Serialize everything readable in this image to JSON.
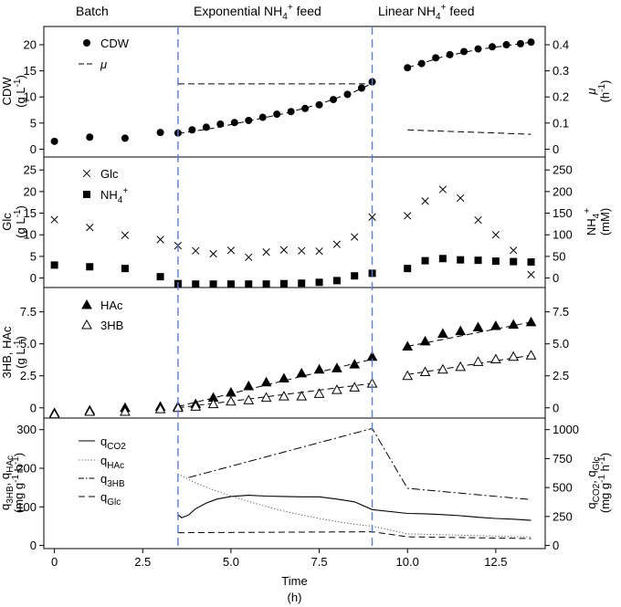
{
  "phases": {
    "batch": "Batch",
    "exponential": "Exponential NH₄⁺ feed",
    "linear": "Linear NH₄⁺ feed",
    "boundaries_h": [
      3.5,
      9.0
    ]
  },
  "chart_data": [
    {
      "type": "scatter",
      "panel": "A",
      "xlim": [
        -0.3,
        13.9
      ],
      "ylim_left": [
        -1.5,
        23.5
      ],
      "left_ticks": [
        "0",
        "5",
        "10",
        "15",
        "20"
      ],
      "ylim_right": [
        -0.03,
        0.47
      ],
      "right_ticks": [
        "0",
        "0.1",
        "0.2",
        "0.3",
        "0.4"
      ],
      "ylabel_left": "CDW",
      "ylabel_left_unit": "(g L⁻¹)",
      "ylabel_right": "μ",
      "ylabel_right_unit": "(h⁻¹)",
      "legend": [
        "CDW",
        "μ"
      ],
      "series": [
        {
          "name": "CDW",
          "axis": "left",
          "marker": "filled-circle",
          "x": [
            0,
            1,
            2,
            3,
            3.5,
            3.9,
            4.3,
            4.7,
            5.1,
            5.5,
            5.9,
            6.3,
            6.7,
            7.1,
            7.5,
            7.9,
            8.3,
            8.7,
            9.0,
            10.0,
            10.4,
            10.8,
            11.2,
            11.6,
            12.0,
            12.4,
            12.8,
            13.2,
            13.5
          ],
          "y": [
            1.5,
            2.3,
            2.1,
            3.2,
            3.1,
            3.7,
            4.2,
            4.8,
            5.1,
            5.5,
            6.1,
            6.7,
            7.2,
            7.8,
            8.5,
            9.5,
            10.5,
            11.7,
            12.9,
            15.6,
            16.4,
            17.5,
            18.1,
            18.7,
            19.2,
            19.6,
            20.0,
            20.2,
            20.5
          ]
        },
        {
          "name": "CDW fit",
          "axis": "left",
          "style": "dashed",
          "x": [
            3.5,
            4.5,
            5.5,
            6.5,
            7.5,
            8.5,
            9.0
          ],
          "y": [
            3.0,
            4.0,
            5.4,
            6.8,
            8.6,
            11.0,
            12.6
          ]
        },
        {
          "name": "CDW fit linear",
          "axis": "left",
          "style": "dashed",
          "x": [
            10.0,
            11.0,
            12.0,
            13.0,
            13.5
          ],
          "y": [
            15.6,
            17.7,
            19.1,
            20.0,
            20.5
          ]
        },
        {
          "name": "μ",
          "axis": "right",
          "style": "dashed",
          "x": [
            3.5,
            9.0
          ],
          "y": [
            0.25,
            0.25
          ]
        },
        {
          "name": "μ linear",
          "axis": "right",
          "style": "dashed",
          "x": [
            10.0,
            13.5
          ],
          "y": [
            0.074,
            0.057
          ]
        }
      ]
    },
    {
      "type": "scatter",
      "panel": "B",
      "xlim": [
        -0.3,
        13.9
      ],
      "ylim_left": [
        -2.2,
        28
      ],
      "left_ticks": [
        "0",
        "5",
        "10",
        "15",
        "20",
        "25"
      ],
      "ylim_right": [
        -22,
        280
      ],
      "right_ticks": [
        "0",
        "50",
        "100",
        "150",
        "200",
        "250"
      ],
      "ylabel_left": "Glc",
      "ylabel_left_unit": "(g L⁻¹)",
      "ylabel_right": "NH₄⁺",
      "ylabel_right_unit": "(mM)",
      "legend": [
        "Glc",
        "NH₄⁺"
      ],
      "series": [
        {
          "name": "Glc",
          "axis": "left",
          "marker": "x",
          "x": [
            0,
            1,
            2,
            3,
            3.5,
            4.0,
            4.5,
            5.0,
            5.5,
            6.0,
            6.5,
            7.0,
            7.5,
            8.0,
            8.5,
            9.0,
            10.0,
            10.5,
            11.0,
            11.5,
            12.0,
            12.5,
            13.0,
            13.5
          ],
          "y": [
            13.5,
            11.7,
            9.9,
            8.9,
            7.5,
            6.3,
            5.6,
            6.4,
            4.8,
            6.0,
            6.5,
            6.3,
            6.2,
            7.8,
            9.5,
            14.1,
            14.4,
            17.8,
            20.5,
            18.5,
            13.4,
            10.0,
            6.4,
            0.8
          ]
        },
        {
          "name": "NH₄⁺",
          "axis": "right",
          "marker": "filled-square",
          "x": [
            0,
            1,
            2,
            3,
            3.5,
            4.0,
            4.5,
            5.0,
            5.5,
            6.0,
            6.5,
            7.0,
            7.5,
            8.0,
            8.5,
            9.0,
            10.0,
            10.5,
            11.0,
            11.5,
            12.0,
            12.5,
            13.0,
            13.5
          ],
          "y": [
            30,
            26,
            22,
            3,
            -13,
            -14,
            -14,
            -14,
            -14,
            -14,
            -13,
            -12,
            -10,
            -6,
            5,
            11,
            22,
            40,
            45,
            42,
            41,
            39,
            38,
            37
          ]
        }
      ]
    },
    {
      "type": "scatter",
      "panel": "C",
      "xlim": [
        -0.3,
        13.9
      ],
      "ylim_left": [
        -0.8,
        9.4
      ],
      "left_ticks": [
        "0",
        "2.5",
        "5.0",
        "7.5"
      ],
      "right_ticks": [
        "0",
        "2.5",
        "5.0",
        "7.5"
      ],
      "ylabel_left": "3HB, HAc",
      "ylabel_left_unit": "(g L⁻¹)",
      "legend": [
        "HAc",
        "3HB"
      ],
      "series": [
        {
          "name": "HAc",
          "axis": "left",
          "marker": "filled-triangle",
          "x": [
            0,
            1,
            2,
            3,
            3.5,
            4.0,
            4.5,
            5.0,
            5.5,
            6.0,
            6.5,
            7.0,
            7.5,
            8.0,
            8.5,
            9.0,
            10.0,
            10.5,
            11.0,
            11.5,
            12.0,
            12.5,
            13.0,
            13.5
          ],
          "y": [
            -0.4,
            -0.2,
            0.0,
            0.1,
            0.1,
            0.3,
            0.8,
            1.2,
            1.7,
            2.0,
            2.3,
            2.7,
            3.0,
            3.1,
            3.4,
            4.0,
            4.8,
            5.2,
            5.8,
            6.0,
            6.3,
            6.4,
            6.5,
            6.7
          ]
        },
        {
          "name": "3HB",
          "axis": "left",
          "marker": "open-triangle",
          "x": [
            0,
            1,
            2,
            3,
            3.5,
            4.0,
            4.5,
            5.0,
            5.5,
            6.0,
            6.5,
            7.0,
            7.5,
            8.0,
            8.5,
            9.0,
            10.0,
            10.5,
            11.0,
            11.5,
            12.0,
            12.5,
            13.0,
            13.5
          ],
          "y": [
            -0.5,
            -0.3,
            -0.3,
            -0.1,
            0.0,
            0.1,
            0.3,
            0.5,
            0.6,
            0.8,
            0.9,
            0.9,
            1.1,
            1.4,
            1.6,
            1.9,
            2.5,
            2.8,
            3.0,
            3.2,
            3.6,
            3.8,
            4.0,
            4.1
          ]
        },
        {
          "name": "HAc fit",
          "axis": "left",
          "style": "dashed",
          "x": [
            3.5,
            9.0
          ],
          "y": [
            0.1,
            3.8
          ]
        },
        {
          "name": "HAc fit linear",
          "axis": "left",
          "style": "dashed",
          "x": [
            10.0,
            13.5
          ],
          "y": [
            4.8,
            6.7
          ]
        },
        {
          "name": "3HB fit",
          "axis": "left",
          "style": "dashed",
          "x": [
            3.5,
            9.0
          ],
          "y": [
            0.0,
            1.9
          ]
        },
        {
          "name": "3HB fit linear",
          "axis": "left",
          "style": "dashed",
          "x": [
            10.0,
            13.5
          ],
          "y": [
            2.6,
            4.1
          ]
        }
      ]
    },
    {
      "type": "line",
      "panel": "D",
      "xlim": [
        -0.3,
        13.9
      ],
      "x_ticks": [
        "0",
        "2.5",
        "5.0",
        "7.5",
        "10.0",
        "12.5"
      ],
      "xlabel": "Time",
      "xlabel_unit": "(h)",
      "ylim_left": [
        -8,
        330
      ],
      "left_ticks": [
        "0",
        "100",
        "200",
        "300"
      ],
      "ylim_right": [
        -27,
        1100
      ],
      "right_ticks": [
        "0",
        "250",
        "500",
        "750",
        "1000"
      ],
      "ylabel_left": "q₃HB, qᴴᴬᶜ",
      "ylabel_left_unit": "(mg g⁻¹ h⁻¹)",
      "ylabel_right": "qᶜᴼ₂, qᴳˡᶜ",
      "ylabel_right_unit": "(mg g⁻¹ h⁻¹)",
      "legend": [
        "qCO2",
        "qHAc",
        "q3HB",
        "qGlc"
      ],
      "series": [
        {
          "name": "qCO2",
          "axis": "left",
          "style": "solid",
          "x": [
            3.5,
            3.6,
            3.8,
            4.0,
            4.3,
            4.6,
            5.0,
            5.5,
            6.0,
            6.5,
            7.0,
            7.5,
            8.0,
            8.5,
            9.0,
            10.0,
            10.5,
            11.0,
            11.5,
            12.0,
            12.5,
            13.0,
            13.5
          ],
          "y": [
            80,
            72,
            79,
            95,
            110,
            120,
            127,
            130,
            128,
            127,
            126,
            126,
            120,
            113,
            93,
            83,
            82,
            80,
            77,
            73,
            70,
            68,
            65
          ]
        },
        {
          "name": "qHAc",
          "axis": "left",
          "style": "dotted",
          "x": [
            3.5,
            4.0,
            4.5,
            5.0,
            5.5,
            6.0,
            6.5,
            7.0,
            7.5,
            8.0,
            8.5,
            9.0,
            10.0,
            13.5
          ],
          "y": [
            185,
            162,
            144,
            128,
            114,
            101,
            89,
            79,
            70,
            62,
            55,
            50,
            30,
            22
          ]
        },
        {
          "name": "q3HB",
          "axis": "left",
          "style": "dash-dot",
          "x": [
            3.8,
            9.0,
            10.0,
            13.5
          ],
          "y": [
            176,
            303,
            148,
            119
          ]
        },
        {
          "name": "qGlc",
          "axis": "right",
          "style": "dashed",
          "x": [
            3.5,
            9.0,
            10.0,
            13.5
          ],
          "y": [
            110,
            118,
            75,
            60
          ]
        }
      ]
    }
  ]
}
